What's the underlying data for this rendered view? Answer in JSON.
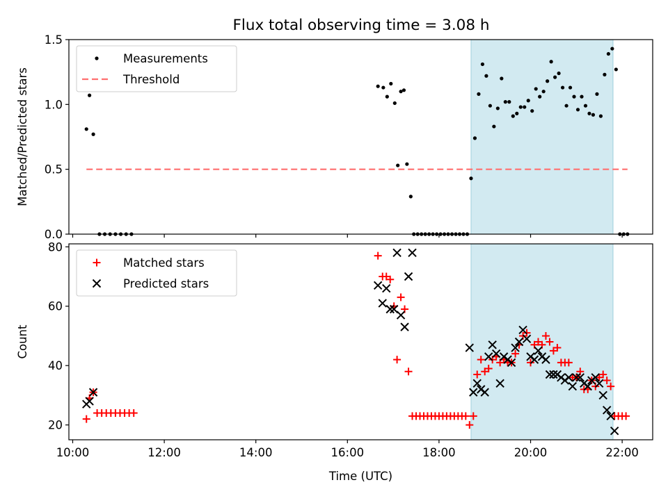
{
  "figure": {
    "title": "Flux total observing time = 3.08 h"
  },
  "chart_data": [
    {
      "type": "scatter",
      "ylabel": "Matched/Predicted stars",
      "xlim": [
        "09:55",
        "22:40"
      ],
      "ylim": [
        0,
        1.5
      ],
      "yticks": [
        "0.0",
        "0.5",
        "1.0",
        "1.5"
      ],
      "shaded_region": {
        "x0": "18:42",
        "x1": "21:48",
        "color": "#add8e6"
      },
      "legend": {
        "placement": "top-left",
        "entries": [
          "Measurements",
          "Threshold"
        ]
      },
      "series": [
        {
          "name": "Measurements",
          "marker": "dot",
          "color": "#000000",
          "points": [
            [
              "10:18",
              0.81
            ],
            [
              "10:22",
              1.07
            ],
            [
              "10:27",
              0.77
            ],
            [
              "10:35",
              0.0
            ],
            [
              "10:42",
              0.0
            ],
            [
              "10:49",
              0.0
            ],
            [
              "10:56",
              0.0
            ],
            [
              "11:03",
              0.0
            ],
            [
              "11:10",
              0.0
            ],
            [
              "11:17",
              0.0
            ],
            [
              "16:40",
              1.14
            ],
            [
              "16:47",
              1.13
            ],
            [
              "16:52",
              1.06
            ],
            [
              "16:57",
              1.16
            ],
            [
              "17:02",
              1.01
            ],
            [
              "17:06",
              0.53
            ],
            [
              "17:10",
              1.1
            ],
            [
              "17:14",
              1.11
            ],
            [
              "17:18",
              0.54
            ],
            [
              "17:23",
              0.29
            ],
            [
              "17:27",
              0.0
            ],
            [
              "17:32",
              0.0
            ],
            [
              "17:37",
              0.0
            ],
            [
              "17:42",
              0.0
            ],
            [
              "17:47",
              0.0
            ],
            [
              "17:52",
              0.0
            ],
            [
              "17:57",
              0.0
            ],
            [
              "18:02",
              0.0
            ],
            [
              "18:07",
              0.0
            ],
            [
              "18:12",
              0.0
            ],
            [
              "18:17",
              0.0
            ],
            [
              "18:22",
              0.0
            ],
            [
              "18:27",
              0.0
            ],
            [
              "18:32",
              0.0
            ],
            [
              "18:37",
              0.0
            ],
            [
              "18:42",
              0.43
            ],
            [
              "18:47",
              0.74
            ],
            [
              "18:52",
              1.08
            ],
            [
              "18:57",
              1.31
            ],
            [
              "19:02",
              1.22
            ],
            [
              "19:07",
              0.99
            ],
            [
              "19:12",
              0.83
            ],
            [
              "19:17",
              0.97
            ],
            [
              "19:22",
              1.2
            ],
            [
              "19:27",
              1.02
            ],
            [
              "19:32",
              1.02
            ],
            [
              "19:37",
              0.91
            ],
            [
              "19:42",
              0.93
            ],
            [
              "19:47",
              0.98
            ],
            [
              "19:52",
              0.98
            ],
            [
              "19:57",
              1.03
            ],
            [
              "20:02",
              0.95
            ],
            [
              "20:07",
              1.12
            ],
            [
              "20:12",
              1.06
            ],
            [
              "20:17",
              1.1
            ],
            [
              "20:22",
              1.18
            ],
            [
              "20:27",
              1.33
            ],
            [
              "20:32",
              1.21
            ],
            [
              "20:37",
              1.24
            ],
            [
              "20:42",
              1.13
            ],
            [
              "20:47",
              0.99
            ],
            [
              "20:52",
              1.13
            ],
            [
              "20:57",
              1.06
            ],
            [
              "21:02",
              0.96
            ],
            [
              "21:07",
              1.06
            ],
            [
              "21:12",
              0.99
            ],
            [
              "21:17",
              0.93
            ],
            [
              "21:22",
              0.92
            ],
            [
              "21:27",
              1.08
            ],
            [
              "21:32",
              0.91
            ],
            [
              "21:37",
              1.23
            ],
            [
              "21:42",
              1.39
            ],
            [
              "21:47",
              1.43
            ],
            [
              "21:52",
              1.27
            ],
            [
              "21:57",
              0.0
            ],
            [
              "22:02",
              0.0
            ],
            [
              "22:07",
              0.0
            ]
          ]
        },
        {
          "name": "Threshold",
          "type": "line",
          "style": "dashed",
          "color": "#ff6f6f",
          "points": [
            [
              "10:18",
              0.5
            ],
            [
              "22:07",
              0.5
            ]
          ]
        }
      ]
    },
    {
      "type": "scatter",
      "xlabel": "Time (UTC)",
      "ylabel": "Count",
      "xlim": [
        "09:55",
        "22:40"
      ],
      "ylim": [
        15,
        81
      ],
      "yticks": [
        "20",
        "40",
        "60",
        "80"
      ],
      "xticks": [
        "10:00",
        "12:00",
        "14:00",
        "16:00",
        "18:00",
        "20:00",
        "22:00"
      ],
      "shaded_region": {
        "x0": "18:42",
        "x1": "21:48",
        "color": "#add8e6"
      },
      "legend": {
        "placement": "top-left",
        "entries": [
          "Matched stars",
          "Predicted stars"
        ]
      },
      "series": [
        {
          "name": "Matched stars",
          "marker": "plus",
          "color": "#ff0000",
          "points": [
            [
              "10:18",
              22
            ],
            [
              "10:22",
              29
            ],
            [
              "10:27",
              31
            ],
            [
              "10:32",
              24
            ],
            [
              "10:38",
              24
            ],
            [
              "10:44",
              24
            ],
            [
              "10:50",
              24
            ],
            [
              "10:56",
              24
            ],
            [
              "11:02",
              24
            ],
            [
              "11:08",
              24
            ],
            [
              "11:14",
              24
            ],
            [
              "11:20",
              24
            ],
            [
              "16:40",
              77
            ],
            [
              "16:46",
              70
            ],
            [
              "16:51",
              70
            ],
            [
              "16:56",
              69
            ],
            [
              "17:01",
              60
            ],
            [
              "17:05",
              42
            ],
            [
              "17:10",
              63
            ],
            [
              "17:15",
              59
            ],
            [
              "17:20",
              38
            ],
            [
              "17:25",
              23
            ],
            [
              "17:30",
              23
            ],
            [
              "17:35",
              23
            ],
            [
              "17:40",
              23
            ],
            [
              "17:45",
              23
            ],
            [
              "17:50",
              23
            ],
            [
              "17:55",
              23
            ],
            [
              "18:00",
              23
            ],
            [
              "18:05",
              23
            ],
            [
              "18:10",
              23
            ],
            [
              "18:15",
              23
            ],
            [
              "18:20",
              23
            ],
            [
              "18:25",
              23
            ],
            [
              "18:30",
              23
            ],
            [
              "18:35",
              23
            ],
            [
              "18:40",
              20
            ],
            [
              "18:45",
              23
            ],
            [
              "18:50",
              37
            ],
            [
              "18:55",
              42
            ],
            [
              "19:00",
              38
            ],
            [
              "19:05",
              39
            ],
            [
              "19:10",
              42
            ],
            [
              "19:15",
              43
            ],
            [
              "19:20",
              41
            ],
            [
              "19:25",
              42
            ],
            [
              "19:30",
              41
            ],
            [
              "19:35",
              41
            ],
            [
              "19:40",
              44
            ],
            [
              "19:45",
              47
            ],
            [
              "19:50",
              50
            ],
            [
              "19:55",
              51
            ],
            [
              "20:00",
              41
            ],
            [
              "20:05",
              47
            ],
            [
              "20:10",
              48
            ],
            [
              "20:15",
              47
            ],
            [
              "20:20",
              50
            ],
            [
              "20:25",
              48
            ],
            [
              "20:30",
              45
            ],
            [
              "20:35",
              46
            ],
            [
              "20:40",
              41
            ],
            [
              "20:45",
              41
            ],
            [
              "20:50",
              41
            ],
            [
              "20:55",
              36
            ],
            [
              "21:00",
              36
            ],
            [
              "21:05",
              38
            ],
            [
              "21:10",
              32
            ],
            [
              "21:15",
              32
            ],
            [
              "21:20",
              35
            ],
            [
              "21:25",
              33
            ],
            [
              "21:30",
              36
            ],
            [
              "21:35",
              37
            ],
            [
              "21:40",
              35
            ],
            [
              "21:45",
              33
            ],
            [
              "21:50",
              23
            ],
            [
              "21:55",
              23
            ],
            [
              "22:00",
              23
            ],
            [
              "22:05",
              23
            ]
          ]
        },
        {
          "name": "Predicted stars",
          "marker": "x",
          "color": "#000000",
          "points": [
            [
              "10:18",
              27
            ],
            [
              "10:22",
              28
            ],
            [
              "10:27",
              31
            ],
            [
              "16:40",
              67
            ],
            [
              "16:46",
              61
            ],
            [
              "16:51",
              66
            ],
            [
              "16:56",
              59
            ],
            [
              "17:01",
              59
            ],
            [
              "17:05",
              78
            ],
            [
              "17:10",
              57
            ],
            [
              "17:15",
              53
            ],
            [
              "17:20",
              70
            ],
            [
              "17:25",
              78
            ],
            [
              "18:40",
              46
            ],
            [
              "18:45",
              31
            ],
            [
              "18:50",
              34
            ],
            [
              "18:55",
              32
            ],
            [
              "19:00",
              31
            ],
            [
              "19:05",
              43
            ],
            [
              "19:10",
              47
            ],
            [
              "19:15",
              44
            ],
            [
              "19:20",
              34
            ],
            [
              "19:25",
              43
            ],
            [
              "19:30",
              42
            ],
            [
              "19:35",
              41
            ],
            [
              "19:40",
              46
            ],
            [
              "19:45",
              48
            ],
            [
              "19:50",
              52
            ],
            [
              "19:55",
              49
            ],
            [
              "20:00",
              43
            ],
            [
              "20:05",
              42
            ],
            [
              "20:10",
              45
            ],
            [
              "20:15",
              43
            ],
            [
              "20:20",
              42
            ],
            [
              "20:25",
              37
            ],
            [
              "20:30",
              37
            ],
            [
              "20:35",
              37
            ],
            [
              "20:40",
              36
            ],
            [
              "20:45",
              35
            ],
            [
              "20:50",
              36
            ],
            [
              "20:55",
              33
            ],
            [
              "21:00",
              36
            ],
            [
              "21:05",
              36
            ],
            [
              "21:10",
              34
            ],
            [
              "21:15",
              33
            ],
            [
              "21:20",
              35
            ],
            [
              "21:25",
              36
            ],
            [
              "21:30",
              34
            ],
            [
              "21:35",
              30
            ],
            [
              "21:40",
              25
            ],
            [
              "21:45",
              23
            ],
            [
              "21:50",
              18
            ]
          ]
        }
      ]
    }
  ]
}
